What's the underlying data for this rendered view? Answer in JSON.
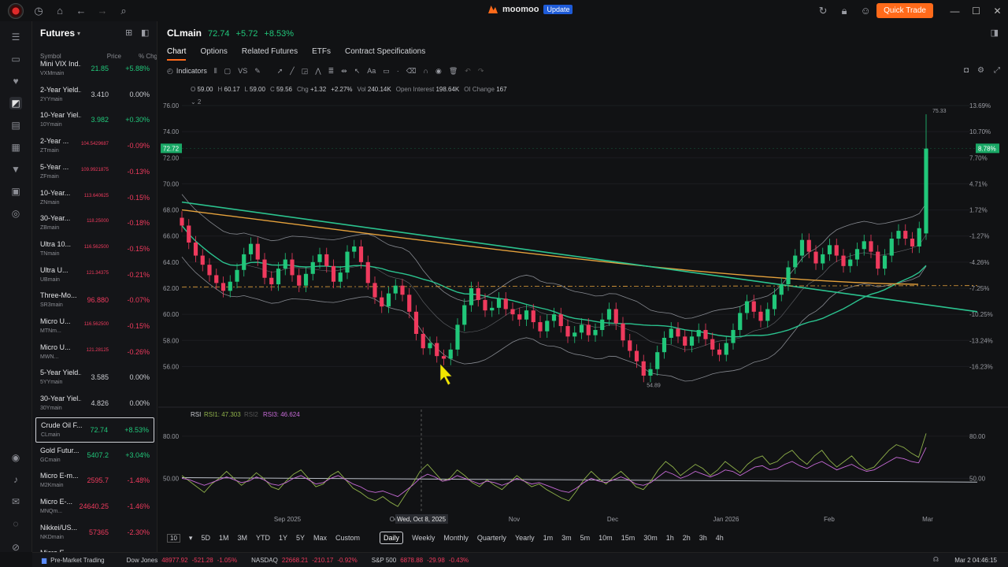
{
  "titlebar": {
    "brand": "moomoo",
    "update_badge": "Update",
    "quick_trade": "Quick Trade"
  },
  "watchlist": {
    "title": "Futures",
    "columns": [
      "Symbol",
      "Price",
      "% Chg"
    ],
    "rows": [
      {
        "name": "Mini VIX Ind...",
        "code": "VXMmain",
        "price": "21.85",
        "chg": "+5.88%",
        "dir": "up"
      },
      {
        "name": "2-Year Yield...",
        "code": "2YYmain",
        "price": "3.410",
        "chg": "0.00%",
        "dir": "flat"
      },
      {
        "name": "10-Year Yiel...",
        "code": "10Ymain",
        "price": "3.982",
        "chg": "+0.30%",
        "dir": "up"
      },
      {
        "name": "2-Year ...",
        "code": "ZTmain",
        "price": "104.5429687",
        "chg": "-0.09%",
        "dir": "down"
      },
      {
        "name": "5-Year ...",
        "code": "ZFmain",
        "price": "109.9921875",
        "chg": "-0.13%",
        "dir": "down"
      },
      {
        "name": "10-Year...",
        "code": "ZNmain",
        "price": "113.640625",
        "chg": "-0.15%",
        "dir": "down"
      },
      {
        "name": "30-Year...",
        "code": "ZBmain",
        "price": "118.25000",
        "chg": "-0.18%",
        "dir": "down"
      },
      {
        "name": "Ultra 10...",
        "code": "TNmain",
        "price": "116.562500",
        "chg": "-0.15%",
        "dir": "down"
      },
      {
        "name": "Ultra U...",
        "code": "UBmain",
        "price": "121.34375",
        "chg": "-0.21%",
        "dir": "down"
      },
      {
        "name": "Three-Mo...",
        "code": "SR3main",
        "price": "96.880",
        "chg": "-0.07%",
        "dir": "down"
      },
      {
        "name": "Micro U...",
        "code": "MTNm...",
        "price": "116.562500",
        "chg": "-0.15%",
        "dir": "down"
      },
      {
        "name": "Micro U...",
        "code": "MWN...",
        "price": "121.28125",
        "chg": "-0.26%",
        "dir": "down"
      },
      {
        "name": "5-Year Yield...",
        "code": "5YYmain",
        "price": "3.585",
        "chg": "0.00%",
        "dir": "flat"
      },
      {
        "name": "30-Year Yiel...",
        "code": "30Ymain",
        "price": "4.826",
        "chg": "0.00%",
        "dir": "flat"
      },
      {
        "name": "Crude Oil F...",
        "code": "CLmain",
        "price": "72.74",
        "chg": "+8.53%",
        "dir": "up"
      },
      {
        "name": "Gold Futur...",
        "code": "GCmain",
        "price": "5407.2",
        "chg": "+3.04%",
        "dir": "up"
      },
      {
        "name": "Micro E-m...",
        "code": "M2Kmain",
        "price": "2595.7",
        "chg": "-1.48%",
        "dir": "down"
      },
      {
        "name": "Micro E-...",
        "code": "MNQm...",
        "price": "24640.25",
        "chg": "-1.46%",
        "dir": "down"
      },
      {
        "name": "Nikkei/US...",
        "code": "NKDmain",
        "price": "57365",
        "chg": "-2.30%",
        "dir": "down"
      },
      {
        "name": "Micro E...",
        "code": "",
        "price": "",
        "chg": "",
        "dir": "flat"
      }
    ]
  },
  "header": {
    "symbol": "CLmain",
    "price": "72.74",
    "change": "+5.72",
    "change_pct": "+8.53%"
  },
  "tabs": [
    "Chart",
    "Options",
    "Related Futures",
    "ETFs",
    "Contract Specifications"
  ],
  "toolbar": {
    "indicators": "Indicators",
    "vs": "VS"
  },
  "ohlc": {
    "o_label": "O",
    "o": "59.00",
    "h_label": "H",
    "h": "60.17",
    "l_label": "L",
    "l": "59.00",
    "c_label": "C",
    "c": "59.56",
    "chg_label": "Chg",
    "chg": "+1.32",
    "pct": "+2.27%",
    "vol_label": "Vol",
    "vol": "240.14K",
    "oi_label": "Open Interest",
    "oi": "198.64K",
    "oic_label": "OI Change",
    "oic": "167"
  },
  "chart_data": {
    "type": "candlestick",
    "y_ticks_left": [
      "76.00",
      "74.00",
      "72.00",
      "70.00",
      "68.00",
      "66.00",
      "64.00",
      "62.00",
      "60.00",
      "58.00",
      "56.00"
    ],
    "y_ticks_right": [
      "13.69%",
      "10.70%",
      "7.70%",
      "4.71%",
      "1.72%",
      "-1.27%",
      "-4.26%",
      "-7.25%",
      "-10.25%",
      "-13.24%",
      "-16.23%"
    ],
    "x_labels": [
      "Sep 2025",
      "Oct",
      "Nov",
      "Dec",
      "Jan 2026",
      "Feb",
      "Mar"
    ],
    "crosshair_date": "Wed, Oct 8, 2025",
    "current_price_tag": "72.72",
    "current_pct_tag": "8.78%",
    "high_label": "75.33",
    "low_label": "54.89",
    "closes": [
      66.8,
      65.5,
      64.5,
      63.8,
      63.0,
      62.4,
      61.8,
      62.5,
      63.4,
      64.6,
      65.4,
      64.2,
      62.8,
      62.3,
      63.5,
      64.2,
      63.0,
      62.2,
      63.1,
      64.0,
      64.6,
      63.7,
      62.5,
      63.2,
      64.8,
      65.2,
      64.0,
      62.4,
      61.3,
      60.6,
      61.6,
      62.2,
      61.5,
      60.2,
      58.5,
      57.4,
      57.8,
      56.8,
      56.6,
      57.3,
      59.2,
      60.7,
      62.0,
      61.1,
      60.3,
      60.5,
      61.2,
      60.4,
      60.0,
      59.6,
      60.3,
      59.4,
      58.7,
      59.5,
      60.0,
      59.1,
      58.3,
      58.6,
      59.2,
      58.4,
      58.8,
      59.6,
      60.4,
      59.3,
      58.0,
      57.2,
      56.4,
      55.3,
      55.8,
      57.1,
      58.2,
      58.9,
      58.3,
      57.6,
      58.3,
      58.8,
      58.1,
      57.3,
      56.9,
      57.8,
      58.8,
      60.1,
      61.0,
      60.2,
      59.5,
      60.4,
      61.5,
      62.3,
      63.6,
      64.5,
      65.7,
      64.8,
      63.9,
      64.6,
      65.3,
      64.5,
      63.7,
      64.2,
      65.0,
      65.6,
      64.8,
      63.5,
      64.5,
      65.8,
      66.4,
      65.8,
      65.2,
      66.6,
      72.7
    ],
    "rsi": {
      "label": "RSI",
      "rsi1_label": "RSI1: 47.303",
      "rsi2_label": "RSI2",
      "rsi3_label": "RSI3: 46.624",
      "y_ticks": [
        "80.00",
        "50.00"
      ],
      "rsi1": [
        52,
        48,
        44,
        40,
        46,
        50,
        55,
        50,
        45,
        49,
        54,
        50,
        44,
        42,
        48,
        53,
        56,
        50,
        44,
        46,
        52,
        55,
        49,
        43,
        40,
        36,
        34,
        37,
        33,
        30,
        38,
        46,
        55,
        60,
        54,
        48,
        50,
        56,
        52,
        47,
        44,
        49,
        45,
        42,
        47,
        52,
        48,
        44,
        46,
        42,
        39,
        36,
        34,
        41,
        49,
        55,
        50,
        46,
        51,
        55,
        50,
        44,
        42,
        48,
        56,
        62,
        58,
        52,
        56,
        60,
        57,
        52,
        56,
        62,
        58,
        54,
        60,
        64,
        66,
        60,
        62,
        67,
        70,
        64,
        60,
        66,
        70,
        63,
        58,
        62,
        66,
        60,
        56,
        58,
        64,
        70,
        74,
        72,
        68,
        65,
        82
      ],
      "rsi3": [
        50,
        49,
        47,
        45,
        47,
        49,
        51,
        49,
        47,
        48,
        51,
        49,
        46,
        45,
        47,
        50,
        52,
        49,
        46,
        47,
        50,
        52,
        49,
        46,
        44,
        41,
        40,
        41,
        39,
        37,
        41,
        45,
        50,
        53,
        51,
        48,
        49,
        52,
        50,
        48,
        46,
        48,
        47,
        45,
        47,
        50,
        48,
        46,
        47,
        45,
        43,
        41,
        40,
        43,
        47,
        50,
        48,
        47,
        49,
        51,
        49,
        46,
        45,
        47,
        51,
        55,
        53,
        50,
        52,
        55,
        53,
        51,
        53,
        56,
        55,
        52,
        55,
        58,
        59,
        56,
        57,
        60,
        62,
        59,
        57,
        60,
        62,
        59,
        56,
        58,
        60,
        57,
        55,
        56,
        59,
        62,
        65,
        64,
        62,
        61,
        72
      ]
    },
    "colors": {
      "up": "#21c77a",
      "down": "#ef3a5d",
      "ma_long": "#e6a23c",
      "ma_mid": "#2bc38f",
      "trend": "#2bc38f",
      "boll": "#b8bcc4"
    }
  },
  "timeframes": [
    "5D",
    "1M",
    "3M",
    "YTD",
    "1Y",
    "5Y",
    "Max",
    "Custom",
    "Daily",
    "Weekly",
    "Monthly",
    "Quarterly",
    "Yearly",
    "1m",
    "3m",
    "5m",
    "10m",
    "15m",
    "30m",
    "1h",
    "2h",
    "3h",
    "4h"
  ],
  "timeframe_active": "Daily",
  "statusbar": {
    "premarket": "Pre-Market Trading",
    "indices": [
      {
        "name": "Dow Jones",
        "value": "48977.92",
        "chg": "-521.28",
        "pct": "-1.05%"
      },
      {
        "name": "NASDAQ",
        "value": "22668.21",
        "chg": "-210.17",
        "pct": "-0.92%"
      },
      {
        "name": "S&P 500",
        "value": "6878.88",
        "chg": "-29.98",
        "pct": "-0.43%"
      }
    ],
    "time": "Mar 2 04:46:15"
  }
}
